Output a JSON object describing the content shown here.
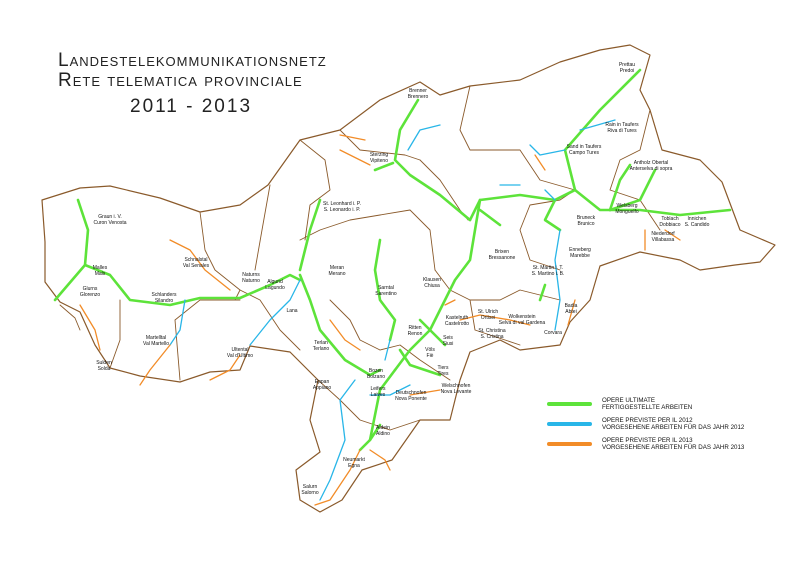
{
  "title": {
    "line1": "Landestelekommunikationsnetz",
    "line2": "Rete telematica provinciale",
    "years": "2011 - 2013"
  },
  "colors": {
    "completed": "#5de33a",
    "planned_2012": "#29b6e8",
    "planned_2013": "#f28c28",
    "border": "#8a5a2b"
  },
  "legend": [
    {
      "key": "completed",
      "line1": "OPERE ULTIMATE",
      "line2": "FERTIGGESTELLTE ARBEITEN"
    },
    {
      "key": "planned_2012",
      "line1": "OPERE PREVISTE PER IL 2012",
      "line2": "VORGESEHENE ARBEITEN FÜR DAS JAHR 2012"
    },
    {
      "key": "planned_2013",
      "line1": "OPERE PREVISTE PER IL 2013",
      "line2": "VORGESEHENE ARBEITEN FÜR DAS JAHR 2013"
    }
  ],
  "places": [
    {
      "de": "Brenner",
      "it": "Brennero"
    },
    {
      "de": "Sterzing",
      "it": "Vipiteno"
    },
    {
      "de": "Prettau",
      "it": "Predoi"
    },
    {
      "de": "Rain in Taufers",
      "it": "Riva di Tures"
    },
    {
      "de": "Sand in Taufers",
      "it": "Campo Tures"
    },
    {
      "de": "Antholz Obertal",
      "it": "Anterselva di sopra"
    },
    {
      "de": "Welsberg",
      "it": "Monguelfo"
    },
    {
      "de": "Toblach",
      "it": "Dobbiaco"
    },
    {
      "de": "Innichen",
      "it": "S. Candido"
    },
    {
      "de": "Niederdorf",
      "it": "Villabassa"
    },
    {
      "de": "Bruneck",
      "it": "Brunico"
    },
    {
      "de": "Enneberg",
      "it": "Marebbe"
    },
    {
      "de": "St. Martin i. T.",
      "it": "S. Martino i. B."
    },
    {
      "de": "Brixen",
      "it": "Bressanone"
    },
    {
      "de": "Badia",
      "it": "Abtei"
    },
    {
      "de": "Corvara",
      "it": ""
    },
    {
      "de": "Wolkenstein",
      "it": "Selva di val Gardena"
    },
    {
      "de": "St. Ulrich",
      "it": "Ortisei"
    },
    {
      "de": "St. Christina",
      "it": "S. Cristina"
    },
    {
      "de": "Kastelruth",
      "it": "Castelrotto"
    },
    {
      "de": "Klausen",
      "it": "Chiusa"
    },
    {
      "de": "Sarntal",
      "it": "Sarentino"
    },
    {
      "de": "Ritten",
      "it": "Renon"
    },
    {
      "de": "Seis",
      "it": "Siusi"
    },
    {
      "de": "Völs",
      "it": "Fiè"
    },
    {
      "de": "Tiers",
      "it": "Tires"
    },
    {
      "de": "Welschnofen",
      "it": "Nova Levante"
    },
    {
      "de": "Bozen",
      "it": "Bolzano"
    },
    {
      "de": "Leifers",
      "it": "Laives"
    },
    {
      "de": "Deutschnofen",
      "it": "Nova Ponente"
    },
    {
      "de": "Aldein",
      "it": "Aldino"
    },
    {
      "de": "Neumarkt",
      "it": "Egna"
    },
    {
      "de": "Salurn",
      "it": "Salorno"
    },
    {
      "de": "Eppan",
      "it": "Appiano"
    },
    {
      "de": "Terlan",
      "it": "Terlano"
    },
    {
      "de": "Lana",
      "it": ""
    },
    {
      "de": "Ultental",
      "it": "Val d'Ultimo"
    },
    {
      "de": "Meran",
      "it": "Merano"
    },
    {
      "de": "Algund",
      "it": "Lagundo"
    },
    {
      "de": "Naturns",
      "it": "Naturno"
    },
    {
      "de": "St. Leonhard i. P.",
      "it": "S. Leonardo i. P."
    },
    {
      "de": "Schnalstal",
      "it": "Val Senales"
    },
    {
      "de": "Schlanders",
      "it": "Silandro"
    },
    {
      "de": "Martelltal",
      "it": "Val Martello"
    },
    {
      "de": "Sulden",
      "it": "Solda"
    },
    {
      "de": "Glurns",
      "it": "Glorenzo"
    },
    {
      "de": "Malles",
      "it": "Mals"
    },
    {
      "de": "Graun i. V.",
      "it": "Curon Venosta"
    }
  ]
}
